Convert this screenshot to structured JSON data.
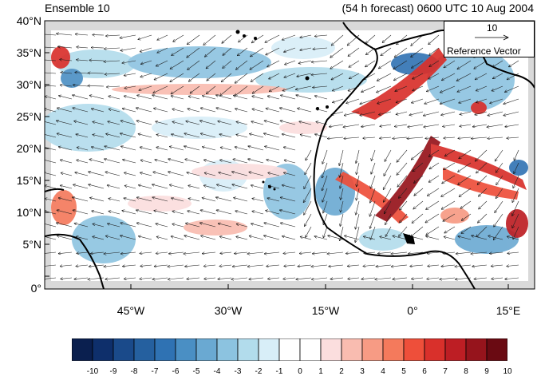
{
  "title_left": "Ensemble 10",
  "title_right": "(54 h forecast) 0600 UTC 10 Aug 2004",
  "y_ticks": [
    "40°N",
    "35°N",
    "30°N",
    "25°N",
    "20°N",
    "15°N",
    "10°N",
    "5°N",
    "0°"
  ],
  "x_ticks": [
    "45°W",
    "30°W",
    "15°W",
    "0°",
    "15°E"
  ],
  "ref_vector": {
    "magnitude": "10",
    "label": "Reference Vector"
  },
  "colorbar": {
    "labels": [
      "-10",
      "-9",
      "-8",
      "-7",
      "-6",
      "-5",
      "-4",
      "-3",
      "-2",
      "-1",
      "0",
      "1",
      "2",
      "3",
      "4",
      "5",
      "6",
      "7",
      "8",
      "9",
      "10"
    ],
    "colors": [
      "#0a1f4f",
      "#0e2f6b",
      "#1a4a8a",
      "#25609f",
      "#2f72b3",
      "#4a8fc4",
      "#6aa9d2",
      "#8cc3e0",
      "#b2dcec",
      "#d8eef8",
      "#ffffff",
      "#ffffff",
      "#fbdede",
      "#f9bcb0",
      "#f79b84",
      "#f47a5c",
      "#ee4f3a",
      "#d9302b",
      "#bd1e24",
      "#96141c",
      "#6a0a12"
    ]
  }
}
